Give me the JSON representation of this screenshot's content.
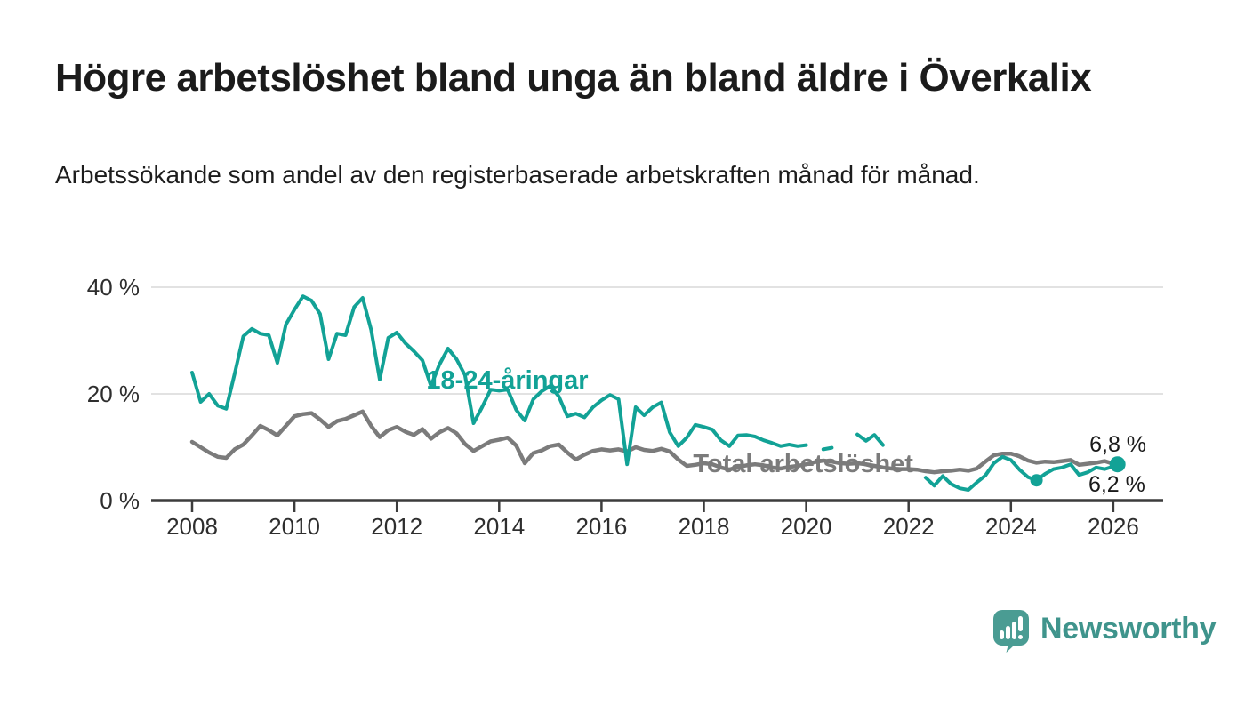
{
  "header": {
    "title": "Högre arbetslöshet bland unga än bland äldre i Överkalix",
    "subtitle": "Arbetssökande som andel av den registerbaserade arbetskraften månad för månad."
  },
  "branding": {
    "name": "Newsworthy",
    "color": "#3f948c",
    "icon": "speech-bubble-bar-chart"
  },
  "chart_data": {
    "type": "line",
    "x_unit": "year (monthly observations)",
    "xlim": [
      2007.2,
      2027
    ],
    "ylim": [
      0,
      42
    ],
    "grid": "horizontal",
    "legend_position": "inline-labels",
    "x_ticks": [
      {
        "v": 2008,
        "label": "2008"
      },
      {
        "v": 2010,
        "label": "2010"
      },
      {
        "v": 2012,
        "label": "2012"
      },
      {
        "v": 2014,
        "label": "2014"
      },
      {
        "v": 2016,
        "label": "2016"
      },
      {
        "v": 2018,
        "label": "2018"
      },
      {
        "v": 2020,
        "label": "2020"
      },
      {
        "v": 2022,
        "label": "2022"
      },
      {
        "v": 2024,
        "label": "2024"
      },
      {
        "v": 2026,
        "label": "2026"
      }
    ],
    "y_ticks": [
      {
        "v": 0,
        "label": "0 %"
      },
      {
        "v": 20,
        "label": "20 %"
      },
      {
        "v": 40,
        "label": "40 %"
      }
    ],
    "series": [
      {
        "name": "Total arbetslöshet",
        "color": "#7b7b7b",
        "stroke_width": 4.5,
        "points": [
          [
            2008,
            11
          ],
          [
            2008.167,
            10
          ],
          [
            2008.333,
            9
          ],
          [
            2008.5,
            8.2
          ],
          [
            2008.667,
            8
          ],
          [
            2008.833,
            9.6
          ],
          [
            2009,
            10.5
          ],
          [
            2009.167,
            12.2
          ],
          [
            2009.333,
            14
          ],
          [
            2009.5,
            13.2
          ],
          [
            2009.667,
            12.2
          ],
          [
            2009.833,
            14
          ],
          [
            2010,
            15.8
          ],
          [
            2010.167,
            16.2
          ],
          [
            2010.333,
            16.4
          ],
          [
            2010.5,
            15.2
          ],
          [
            2010.667,
            13.8
          ],
          [
            2010.833,
            14.9
          ],
          [
            2011,
            15.3
          ],
          [
            2011.167,
            16
          ],
          [
            2011.333,
            16.7
          ],
          [
            2011.5,
            14
          ],
          [
            2011.667,
            11.9
          ],
          [
            2011.833,
            13.2
          ],
          [
            2012,
            13.8
          ],
          [
            2012.167,
            12.9
          ],
          [
            2012.333,
            12.3
          ],
          [
            2012.5,
            13.4
          ],
          [
            2012.667,
            11.6
          ],
          [
            2012.833,
            12.8
          ],
          [
            2013,
            13.6
          ],
          [
            2013.167,
            12.6
          ],
          [
            2013.333,
            10.6
          ],
          [
            2013.5,
            9.3
          ],
          [
            2013.667,
            10.2
          ],
          [
            2013.833,
            11.1
          ],
          [
            2014,
            11.4
          ],
          [
            2014.167,
            11.8
          ],
          [
            2014.333,
            10.3
          ],
          [
            2014.5,
            7
          ],
          [
            2014.667,
            8.9
          ],
          [
            2014.833,
            9.4
          ],
          [
            2015,
            10.2
          ],
          [
            2015.167,
            10.5
          ],
          [
            2015.333,
            9
          ],
          [
            2015.5,
            7.7
          ],
          [
            2015.667,
            8.6
          ],
          [
            2015.833,
            9.3
          ],
          [
            2016,
            9.6
          ],
          [
            2016.167,
            9.4
          ],
          [
            2016.333,
            9.6
          ],
          [
            2016.5,
            9.2
          ],
          [
            2016.667,
            10
          ],
          [
            2016.833,
            9.5
          ],
          [
            2017,
            9.3
          ],
          [
            2017.167,
            9.7
          ],
          [
            2017.333,
            9.2
          ],
          [
            2017.5,
            7.7
          ],
          [
            2017.667,
            6.5
          ],
          [
            2017.833,
            6.7
          ],
          [
            2018,
            7
          ],
          [
            2018.167,
            6.8
          ],
          [
            2018.333,
            6.2
          ],
          [
            2018.5,
            5.8
          ],
          [
            2018.667,
            6.3
          ],
          [
            2018.833,
            6.6
          ],
          [
            2019,
            6.8
          ],
          [
            2019.167,
            6.6
          ],
          [
            2019.333,
            6.2
          ],
          [
            2019.5,
            6
          ],
          [
            2019.667,
            6.3
          ],
          [
            2019.833,
            6.5
          ],
          [
            2020,
            6.8
          ],
          [
            2020.167,
            7.2
          ],
          [
            2020.333,
            7.5
          ],
          [
            2020.5,
            7.3
          ],
          [
            2020.667,
            7
          ],
          [
            2020.833,
            6.9
          ],
          [
            2021,
            7
          ],
          [
            2021.167,
            6.8
          ],
          [
            2021.333,
            6.5
          ],
          [
            2021.5,
            6.2
          ],
          [
            2021.667,
            6
          ],
          [
            2021.833,
            5.9
          ],
          [
            2022,
            5.9
          ],
          [
            2022.167,
            5.8
          ],
          [
            2022.333,
            5.5
          ],
          [
            2022.5,
            5.3
          ],
          [
            2022.667,
            5.5
          ],
          [
            2022.833,
            5.6
          ],
          [
            2023,
            5.8
          ],
          [
            2023.167,
            5.6
          ],
          [
            2023.333,
            6
          ],
          [
            2023.5,
            7.3
          ],
          [
            2023.667,
            8.5
          ],
          [
            2023.833,
            8.8
          ],
          [
            2024,
            8.8
          ],
          [
            2024.167,
            8.3
          ],
          [
            2024.333,
            7.5
          ],
          [
            2024.5,
            7.1
          ],
          [
            2024.667,
            7.3
          ],
          [
            2024.833,
            7.2
          ],
          [
            2025,
            7.4
          ],
          [
            2025.167,
            7.6
          ],
          [
            2025.333,
            6.7
          ],
          [
            2025.5,
            6.9
          ],
          [
            2025.667,
            7.1
          ],
          [
            2025.833,
            7.4
          ],
          [
            2026,
            6.9
          ],
          [
            2026.167,
            6.2
          ]
        ],
        "markers": [],
        "latest_value_label": "6,2 %"
      },
      {
        "name": "18-24-åringar",
        "color": "#12a296",
        "stroke_width": 4,
        "points": [
          [
            2008,
            24
          ],
          [
            2008.167,
            18.5
          ],
          [
            2008.333,
            20
          ],
          [
            2008.5,
            17.8
          ],
          [
            2008.667,
            17.2
          ],
          [
            2008.833,
            23.8
          ],
          [
            2009,
            30.8
          ],
          [
            2009.167,
            32.2
          ],
          [
            2009.333,
            31.3
          ],
          [
            2009.5,
            31
          ],
          [
            2009.667,
            25.8
          ],
          [
            2009.833,
            33
          ],
          [
            2010,
            35.8
          ],
          [
            2010.167,
            38.3
          ],
          [
            2010.333,
            37.5
          ],
          [
            2010.5,
            35
          ],
          [
            2010.667,
            26.5
          ],
          [
            2010.833,
            31.3
          ],
          [
            2011,
            31
          ],
          [
            2011.167,
            36.3
          ],
          [
            2011.333,
            38
          ],
          [
            2011.5,
            32
          ],
          [
            2011.667,
            22.7
          ],
          [
            2011.833,
            30.5
          ],
          [
            2012,
            31.5
          ],
          [
            2012.167,
            29.5
          ],
          [
            2012.333,
            28
          ],
          [
            2012.5,
            26.3
          ],
          [
            2012.667,
            21.5
          ],
          [
            2012.833,
            25.5
          ],
          [
            2013,
            28.5
          ],
          [
            2013.167,
            26.5
          ],
          [
            2013.333,
            23.5
          ],
          [
            2013.5,
            14.5
          ],
          [
            2013.667,
            17.5
          ],
          [
            2013.833,
            20.8
          ],
          [
            2014,
            20.6
          ],
          [
            2014.167,
            20.8
          ],
          [
            2014.333,
            17
          ],
          [
            2014.5,
            15
          ],
          [
            2014.667,
            19
          ],
          [
            2014.833,
            20.5
          ],
          [
            2015,
            21.5
          ],
          [
            2015.167,
            19.5
          ],
          [
            2015.333,
            15.8
          ],
          [
            2015.5,
            16.3
          ],
          [
            2015.667,
            15.6
          ],
          [
            2015.833,
            17.5
          ],
          [
            2016,
            18.8
          ],
          [
            2016.167,
            19.8
          ],
          [
            2016.333,
            19
          ],
          [
            2016.5,
            6.8
          ],
          [
            2016.667,
            17.5
          ],
          [
            2016.833,
            16
          ],
          [
            2017,
            17.5
          ],
          [
            2017.167,
            18.4
          ],
          [
            2017.333,
            12.8
          ],
          [
            2017.5,
            10.2
          ],
          [
            2017.667,
            11.8
          ],
          [
            2017.833,
            14.2
          ],
          [
            2018,
            13.8
          ],
          [
            2018.167,
            13.3
          ],
          [
            2018.333,
            11.3
          ],
          [
            2018.5,
            10.2
          ],
          [
            2018.667,
            12.2
          ],
          [
            2018.833,
            12.3
          ],
          [
            2019,
            12
          ],
          [
            2019.167,
            11.3
          ],
          [
            2019.333,
            10.8
          ],
          [
            2019.5,
            10.2
          ],
          [
            2019.667,
            10.5
          ],
          [
            2019.833,
            10.2
          ],
          [
            2020,
            10.4
          ],
          [
            2020.167,
            null
          ],
          [
            2020.333,
            9.6
          ],
          [
            2020.5,
            9.9
          ],
          [
            2020.667,
            null
          ],
          [
            2020.833,
            null
          ],
          [
            2021,
            12.4
          ],
          [
            2021.167,
            11.2
          ],
          [
            2021.333,
            12.3
          ],
          [
            2021.5,
            10.4
          ],
          [
            2021.667,
            null
          ],
          [
            2021.833,
            null
          ],
          [
            2022,
            null
          ],
          [
            2022.167,
            null
          ],
          [
            2022.333,
            4.3
          ],
          [
            2022.5,
            2.8
          ],
          [
            2022.667,
            4.6
          ],
          [
            2022.833,
            3.1
          ],
          [
            2023,
            2.3
          ],
          [
            2023.167,
            2
          ],
          [
            2023.333,
            3.4
          ],
          [
            2023.5,
            4.7
          ],
          [
            2023.667,
            7
          ],
          [
            2023.833,
            8.2
          ],
          [
            2024,
            7.6
          ],
          [
            2024.167,
            5.8
          ],
          [
            2024.333,
            4.4
          ],
          [
            2024.5,
            3.8
          ],
          [
            2024.667,
            5
          ],
          [
            2024.833,
            5.9
          ],
          [
            2025,
            6.2
          ],
          [
            2025.167,
            6.8
          ],
          [
            2025.333,
            4.8
          ],
          [
            2025.5,
            5.3
          ],
          [
            2025.667,
            6.2
          ],
          [
            2025.833,
            5.9
          ],
          [
            2026,
            6.4
          ],
          [
            2026.083,
            6.8
          ]
        ],
        "markers": [
          {
            "x": 2024.5,
            "y": 3.8,
            "r": 7
          },
          {
            "x": 2026.083,
            "y": 6.8,
            "r": 9
          }
        ],
        "latest_value_label": "6,8 %"
      }
    ],
    "annotations": [
      {
        "id": "label-youth",
        "text": "18-24-åringar",
        "x": 2014.16,
        "ypct": 21,
        "color": "#12a296",
        "size": 29,
        "weight": 700,
        "anchor": "middle"
      },
      {
        "id": "label-total",
        "text": "Total arbetslöshet",
        "x": 2019.94,
        "ypct": 5.33,
        "color": "#7b7b7b",
        "size": 29,
        "weight": 700,
        "anchor": "middle"
      },
      {
        "id": "value-youth",
        "text": "6,8 %",
        "x": 2026.09,
        "ypct": 9.17,
        "color": "#1a1a1a",
        "size": 25,
        "weight": 400,
        "anchor": "middle"
      },
      {
        "id": "value-total",
        "text": "6,2 %",
        "x": 2026.07,
        "ypct": 1.67,
        "color": "#1a1a1a",
        "size": 25,
        "weight": 400,
        "anchor": "middle"
      }
    ]
  }
}
